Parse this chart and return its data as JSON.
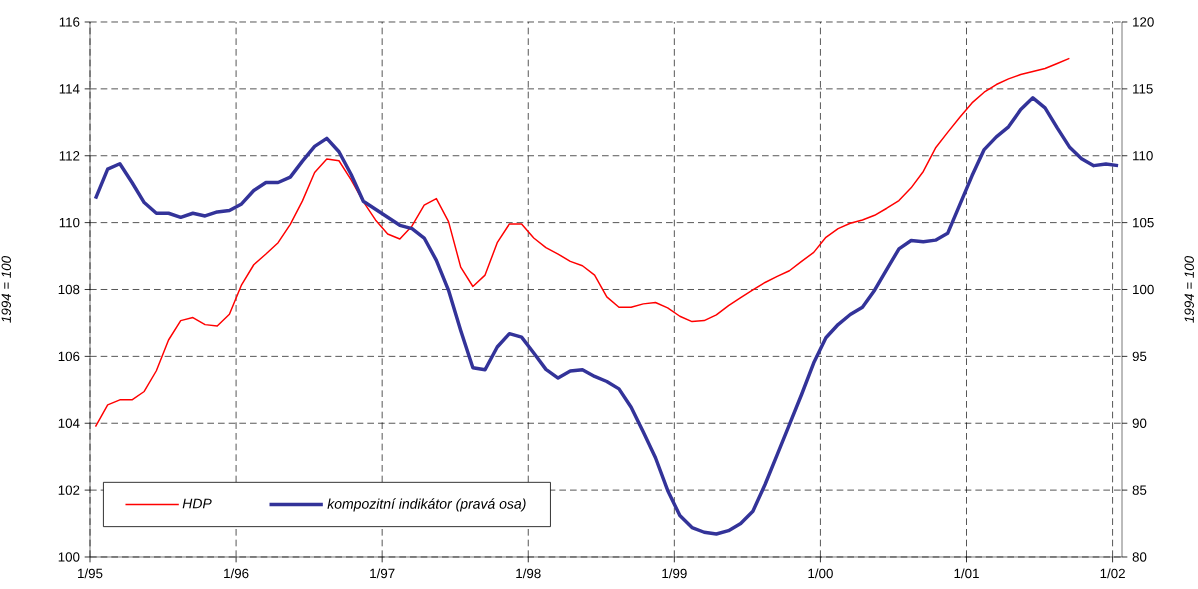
{
  "chart_data": {
    "type": "line",
    "ylabel": "1994 = 100",
    "y2label": "1994 = 100",
    "xlim": [
      "1995-01-01",
      "2002-01-25"
    ],
    "xticks": [
      {
        "value": "1995-01-01",
        "label": "1/95"
      },
      {
        "value": "1996-01-01",
        "label": "1/96"
      },
      {
        "value": "1997-01-01",
        "label": "1/97"
      },
      {
        "value": "1998-01-01",
        "label": "1/98"
      },
      {
        "value": "1999-01-01",
        "label": "1/99"
      },
      {
        "value": "2000-01-01",
        "label": "1/00"
      },
      {
        "value": "2001-01-01",
        "label": "1/01"
      },
      {
        "value": "2002-01-01",
        "label": "1/02"
      }
    ],
    "ylim": [
      100,
      116
    ],
    "yticks": [
      100,
      102,
      104,
      106,
      108,
      110,
      112,
      114,
      116
    ],
    "y2lim": [
      80,
      120
    ],
    "y2ticks": [
      80,
      85,
      90,
      95,
      100,
      105,
      110,
      115,
      120
    ],
    "grid": true,
    "legend": "bottom left",
    "series": [
      {
        "name": "HDP",
        "color": "#ff0000",
        "x": [
          "1995-01-15",
          "1995-02-15",
          "1995-03-15",
          "1995-04-15",
          "1995-05-15",
          "1995-06-15",
          "1995-07-15",
          "1995-08-15",
          "1995-09-15",
          "1995-10-15",
          "1995-11-15",
          "1995-12-15",
          "1996-01-15",
          "1996-02-15",
          "1996-03-15",
          "1996-04-15",
          "1996-05-15",
          "1996-06-15",
          "1996-07-15",
          "1996-08-15",
          "1996-09-15",
          "1996-10-15",
          "1996-11-15",
          "1996-12-15",
          "1997-01-15",
          "1997-02-15",
          "1997-03-15",
          "1997-04-15",
          "1997-05-15",
          "1997-06-15",
          "1997-07-15",
          "1997-08-15",
          "1997-09-15",
          "1997-10-15",
          "1997-11-15",
          "1997-12-15",
          "1998-01-15",
          "1998-02-15",
          "1998-03-15",
          "1998-04-15",
          "1998-05-15",
          "1998-06-15",
          "1998-07-15",
          "1998-08-15",
          "1998-09-15",
          "1998-10-15",
          "1998-11-15",
          "1998-12-15",
          "1999-01-15",
          "1999-02-15",
          "1999-03-15",
          "1999-04-15",
          "1999-05-15",
          "1999-06-15",
          "1999-07-15",
          "1999-08-15",
          "1999-09-15",
          "1999-10-15",
          "1999-11-15",
          "1999-12-15",
          "2000-01-15",
          "2000-02-15",
          "2000-03-15",
          "2000-04-15",
          "2000-05-15",
          "2000-06-15",
          "2000-07-15",
          "2000-08-15",
          "2000-09-15",
          "2000-10-15",
          "2000-11-15",
          "2000-12-15",
          "2001-01-15",
          "2001-02-15",
          "2001-03-15",
          "2001-04-15",
          "2001-05-15",
          "2001-06-15",
          "2001-07-15",
          "2001-08-15",
          "2001-09-15"
        ],
        "values": [
          103.9,
          104.55,
          104.7,
          104.7,
          104.95,
          105.57,
          106.49,
          107.07,
          107.16,
          106.95,
          106.91,
          107.26,
          108.14,
          108.74,
          109.06,
          109.4,
          109.95,
          110.65,
          111.5,
          111.9,
          111.85,
          111.28,
          110.63,
          110.08,
          109.66,
          109.51,
          109.9,
          110.52,
          110.72,
          110.03,
          108.67,
          108.09,
          108.43,
          109.4,
          109.96,
          109.96,
          109.54,
          109.25,
          109.06,
          108.84,
          108.71,
          108.43,
          107.78,
          107.47,
          107.47,
          107.57,
          107.61,
          107.45,
          107.2,
          107.04,
          107.07,
          107.24,
          107.52,
          107.76,
          107.99,
          108.21,
          108.39,
          108.56,
          108.84,
          109.11,
          109.56,
          109.82,
          109.98,
          110.08,
          110.22,
          110.43,
          110.66,
          111.04,
          111.53,
          112.23,
          112.7,
          113.15,
          113.58,
          113.9,
          114.13,
          114.3,
          114.43,
          114.52,
          114.61,
          114.76,
          114.91
        ]
      },
      {
        "name": "kompozitní indikátor (pravá osa)",
        "color": "#333399",
        "axis": "y2",
        "x": [
          "1995-01-15",
          "1995-02-15",
          "1995-03-15",
          "1995-04-15",
          "1995-05-15",
          "1995-06-15",
          "1995-07-15",
          "1995-08-15",
          "1995-09-15",
          "1995-10-15",
          "1995-11-15",
          "1995-12-15",
          "1996-01-15",
          "1996-02-15",
          "1996-03-15",
          "1996-04-15",
          "1996-05-15",
          "1996-06-15",
          "1996-07-15",
          "1996-08-15",
          "1996-09-15",
          "1996-10-15",
          "1996-11-15",
          "1996-12-15",
          "1997-01-15",
          "1997-02-15",
          "1997-03-15",
          "1997-04-15",
          "1997-05-15",
          "1997-06-15",
          "1997-07-15",
          "1997-08-15",
          "1997-09-15",
          "1997-10-15",
          "1997-11-15",
          "1997-12-15",
          "1998-01-15",
          "1998-02-15",
          "1998-03-15",
          "1998-04-15",
          "1998-05-15",
          "1998-06-15",
          "1998-07-15",
          "1998-08-15",
          "1998-09-15",
          "1998-10-15",
          "1998-11-15",
          "1998-12-15",
          "1999-01-15",
          "1999-02-15",
          "1999-03-15",
          "1999-04-15",
          "1999-05-15",
          "1999-06-15",
          "1999-07-15",
          "1999-08-15",
          "1999-09-15",
          "1999-10-15",
          "1999-11-15",
          "1999-12-15",
          "2000-01-15",
          "2000-02-15",
          "2000-03-15",
          "2000-04-15",
          "2000-05-15",
          "2000-06-15",
          "2000-07-15",
          "2000-08-15",
          "2000-09-15",
          "2000-10-15",
          "2000-11-15",
          "2000-12-15",
          "2001-01-15",
          "2001-02-15",
          "2001-03-15",
          "2001-04-15",
          "2001-05-15",
          "2001-06-15",
          "2001-07-15",
          "2001-08-15",
          "2001-09-15",
          "2001-10-15",
          "2001-11-15",
          "2001-12-15",
          "2002-01-15"
        ],
        "values": [
          106.8,
          109.0,
          109.4,
          108.0,
          106.5,
          105.7,
          105.7,
          105.4,
          105.7,
          105.5,
          105.8,
          105.9,
          106.4,
          107.4,
          108.0,
          108.0,
          108.4,
          109.6,
          110.7,
          111.3,
          110.3,
          108.6,
          106.6,
          106.0,
          105.4,
          104.8,
          104.55,
          103.85,
          102.18,
          99.94,
          96.94,
          94.15,
          94.0,
          95.7,
          96.7,
          96.44,
          95.25,
          94.03,
          93.38,
          93.9,
          94.0,
          93.5,
          93.12,
          92.57,
          91.2,
          89.34,
          87.42,
          84.98,
          83.1,
          82.2,
          81.85,
          81.72,
          81.97,
          82.5,
          83.42,
          85.42,
          87.66,
          89.9,
          92.15,
          94.52,
          96.39,
          97.38,
          98.13,
          98.68,
          99.95,
          101.5,
          103.04,
          103.66,
          103.57,
          103.69,
          104.2,
          106.35,
          108.5,
          110.46,
          111.41,
          112.16,
          113.45,
          114.33,
          113.58,
          112.08,
          110.66,
          109.78,
          109.26,
          109.38,
          109.26
        ]
      }
    ]
  }
}
